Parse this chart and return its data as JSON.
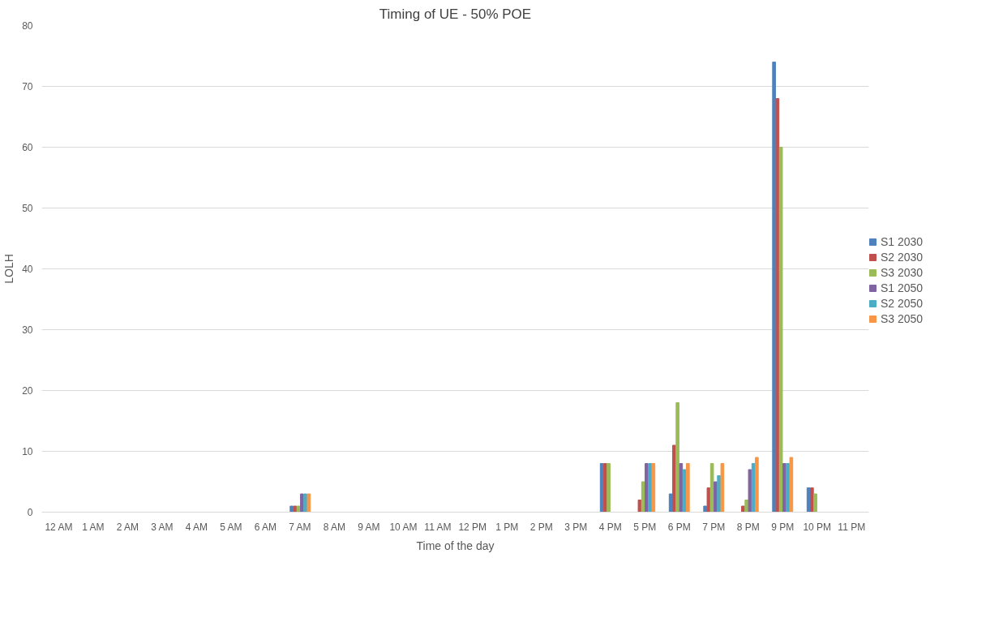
{
  "chart_data": {
    "type": "bar",
    "title": "Timing of UE - 50% POE",
    "xlabel": "Time of the day",
    "ylabel": "LOLH",
    "categories": [
      "12 AM",
      "1 AM",
      "2 AM",
      "3 AM",
      "4 AM",
      "5 AM",
      "6 AM",
      "7 AM",
      "8 AM",
      "9 AM",
      "10 AM",
      "11 AM",
      "12 PM",
      "1 PM",
      "2 PM",
      "3 PM",
      "4 PM",
      "5 PM",
      "6 PM",
      "7 PM",
      "8 PM",
      "9 PM",
      "10 PM",
      "11 PM"
    ],
    "series": [
      {
        "name": "S1 2030",
        "color": "#4f81bd",
        "values": [
          0,
          0,
          0,
          0,
          0,
          0,
          0,
          1,
          0,
          0,
          0,
          0,
          0,
          0,
          0,
          0,
          8,
          0,
          3,
          1,
          0,
          74,
          4,
          0
        ]
      },
      {
        "name": "S2 2030",
        "color": "#c0504d",
        "values": [
          0,
          0,
          0,
          0,
          0,
          0,
          0,
          1,
          0,
          0,
          0,
          0,
          0,
          0,
          0,
          0,
          8,
          2,
          11,
          4,
          1,
          68,
          4,
          0
        ]
      },
      {
        "name": "S3 2030",
        "color": "#9bbb59",
        "values": [
          0,
          0,
          0,
          0,
          0,
          0,
          0,
          1,
          0,
          0,
          0,
          0,
          0,
          0,
          0,
          0,
          8,
          5,
          18,
          8,
          2,
          60,
          3,
          0
        ]
      },
      {
        "name": "S1 2050",
        "color": "#8064a2",
        "values": [
          0,
          0,
          0,
          0,
          0,
          0,
          0,
          3,
          0,
          0,
          0,
          0,
          0,
          0,
          0,
          0,
          0,
          8,
          8,
          5,
          7,
          8,
          0,
          0
        ]
      },
      {
        "name": "S2 2050",
        "color": "#4bacc6",
        "values": [
          0,
          0,
          0,
          0,
          0,
          0,
          0,
          3,
          0,
          0,
          0,
          0,
          0,
          0,
          0,
          0,
          0,
          8,
          7,
          6,
          8,
          8,
          0,
          0
        ]
      },
      {
        "name": "S3 2050",
        "color": "#f79646",
        "values": [
          0,
          0,
          0,
          0,
          0,
          0,
          0,
          3,
          0,
          0,
          0,
          0,
          0,
          0,
          0,
          0,
          0,
          8,
          8,
          8,
          9,
          9,
          0,
          0
        ]
      }
    ],
    "ylim": [
      0,
      80
    ],
    "yticks": [
      0,
      10,
      20,
      30,
      40,
      50,
      60,
      70,
      80
    ],
    "grid": "y",
    "legend": "right"
  }
}
